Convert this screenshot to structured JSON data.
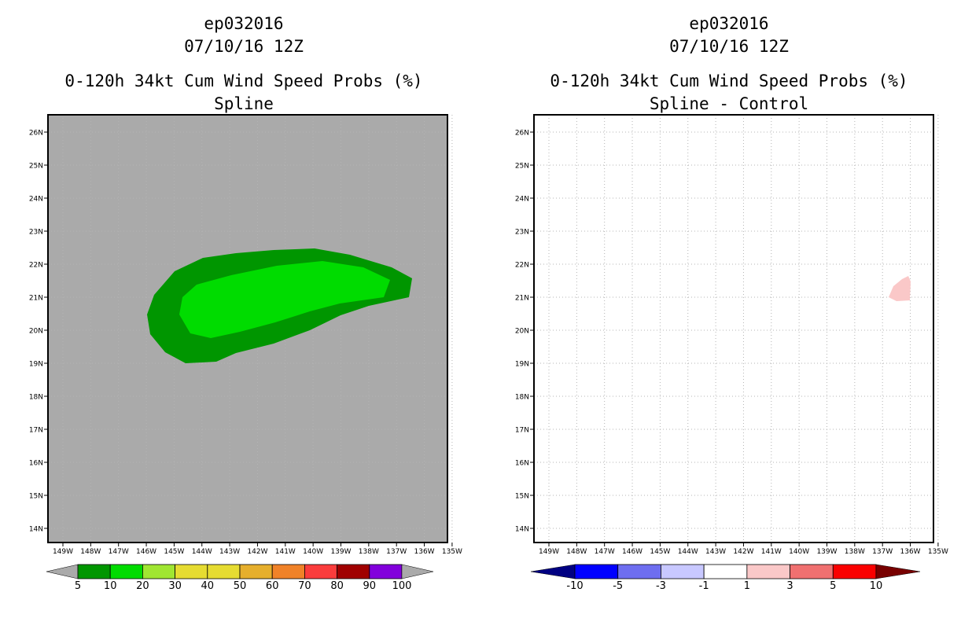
{
  "left_panel": {
    "title_line1": "ep032016",
    "title_line2": "07/10/16 12Z",
    "title_line3": "0-120h 34kt Cum Wind Speed Probs (%)",
    "title_line4": "Spline"
  },
  "right_panel": {
    "title_line1": "ep032016",
    "title_line2": "07/10/16 12Z",
    "title_line3": "0-120h 34kt Cum Wind Speed Probs (%)",
    "title_line4": "Spline - Control"
  },
  "map": {
    "lat_labels": [
      "26N",
      "25N",
      "24N",
      "23N",
      "22N",
      "21N",
      "20N",
      "19N",
      "18N",
      "17N",
      "16N",
      "15N",
      "14N"
    ],
    "lon_labels": [
      "149W",
      "148W",
      "147W",
      "146W",
      "145W",
      "144W",
      "143W",
      "142W",
      "141W",
      "140W",
      "139W",
      "138W",
      "137W",
      "136W",
      "135W"
    ]
  },
  "colors": {
    "land_gray": "#aaaaaa",
    "prob_5_10": "#009600",
    "prob_10_20": "#00dc00",
    "diff_1_3": "#fac8c8"
  },
  "left_colorbar": {
    "labels": [
      "5",
      "10",
      "20",
      "30",
      "40",
      "50",
      "60",
      "70",
      "80",
      "90",
      "100"
    ],
    "colors": [
      "#009600",
      "#00dc00",
      "#a0e632",
      "#e6dc32",
      "#e6dc32",
      "#e6af2d",
      "#f08228",
      "#fa3c3c",
      "#a00000",
      "#8200dc"
    ],
    "end_left_color": "#aaaaaa",
    "end_right_color": "#aaaaaa"
  },
  "right_colorbar": {
    "labels": [
      "-10",
      "-5",
      "-3",
      "-1",
      "1",
      "3",
      "5",
      "10"
    ],
    "colors": [
      "#0000ff",
      "#6e6ef0",
      "#c8c8ff",
      "#ffffff",
      "#fac8c8",
      "#f07070",
      "#fa0000"
    ],
    "end_left_color": "#000082",
    "end_right_color": "#780000"
  }
}
